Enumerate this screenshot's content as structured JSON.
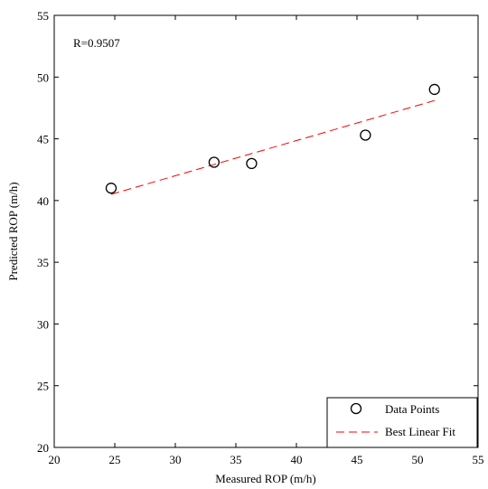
{
  "chart_data": {
    "type": "scatter",
    "xlabel": "Measured ROP (m/h)",
    "ylabel": "Predicted ROP (m/h)",
    "xlim": [
      20,
      55
    ],
    "ylim": [
      20,
      55
    ],
    "xticks": [
      "20",
      "25",
      "30",
      "35",
      "40",
      "45",
      "50",
      "55"
    ],
    "yticks": [
      "20",
      "25",
      "30",
      "35",
      "40",
      "45",
      "50",
      "55"
    ],
    "annotation": "R=0.9507",
    "grid": false,
    "legend_position": "bottom-right",
    "series": [
      {
        "name": "Data Points",
        "type": "scatter",
        "marker": "open-circle",
        "color": "#000000",
        "x": [
          24.7,
          33.2,
          36.3,
          45.7,
          51.4
        ],
        "y": [
          41.0,
          43.1,
          43.0,
          45.3,
          49.0
        ]
      },
      {
        "name": "Best Linear Fit",
        "type": "line",
        "style": "dashed",
        "color": "#ff0000",
        "x": [
          24.7,
          51.4
        ],
        "y": [
          40.5,
          48.1
        ]
      }
    ]
  }
}
